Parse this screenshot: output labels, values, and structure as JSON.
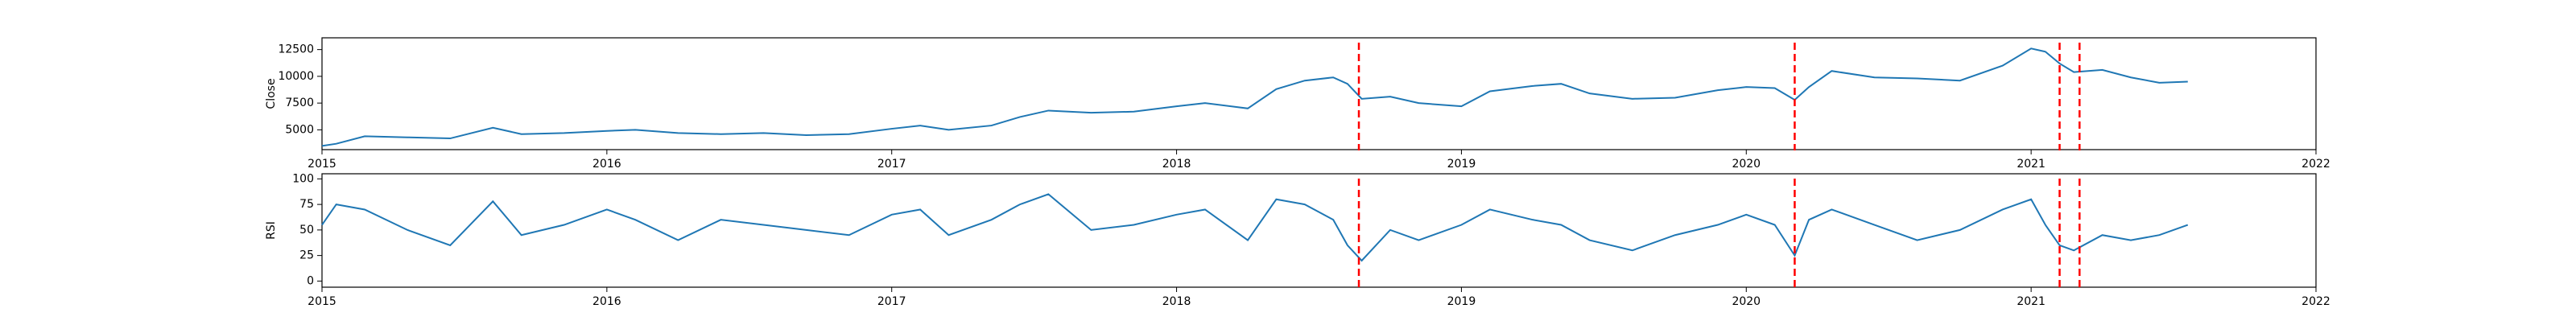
{
  "chart_data": [
    {
      "type": "line",
      "ylabel": "Close",
      "x": [
        2015.0,
        2015.05,
        2015.15,
        2015.3,
        2015.45,
        2015.6,
        2015.7,
        2015.85,
        2016.0,
        2016.1,
        2016.25,
        2016.4,
        2016.55,
        2016.7,
        2016.85,
        2017.0,
        2017.1,
        2017.2,
        2017.35,
        2017.45,
        2017.55,
        2017.7,
        2017.85,
        2018.0,
        2018.1,
        2018.25,
        2018.35,
        2018.45,
        2018.55,
        2018.6,
        2018.65,
        2018.75,
        2018.85,
        2019.0,
        2019.1,
        2019.25,
        2019.35,
        2019.45,
        2019.6,
        2019.75,
        2019.9,
        2020.0,
        2020.1,
        2020.17,
        2020.22,
        2020.3,
        2020.45,
        2020.6,
        2020.75,
        2020.9,
        2021.0,
        2021.05,
        2021.1,
        2021.15,
        2021.25,
        2021.35,
        2021.45,
        2021.55
      ],
      "series": [
        {
          "color": "#1f77b4",
          "values": [
            3500,
            3700,
            4400,
            4300,
            4200,
            5200,
            4600,
            4700,
            4900,
            5000,
            4700,
            4600,
            4700,
            4500,
            4600,
            5100,
            5400,
            5000,
            5400,
            6200,
            6800,
            6600,
            6700,
            7200,
            7500,
            7000,
            8800,
            9600,
            9900,
            9300,
            7900,
            8100,
            7500,
            7200,
            8600,
            9100,
            9300,
            8400,
            7900,
            8000,
            8700,
            9000,
            8900,
            7800,
            9000,
            10500,
            9900,
            9800,
            9600,
            11000,
            12600,
            12300,
            11200,
            10400,
            10600,
            9900,
            9400,
            9500
          ]
        }
      ],
      "event_lines": {
        "color": "red",
        "x": [
          2018.64,
          2020.17,
          2021.1,
          2021.17
        ]
      },
      "xlim": [
        2015,
        2022
      ],
      "xticks": [
        2015,
        2016,
        2017,
        2018,
        2019,
        2020,
        2021,
        2022
      ],
      "ylim": [
        3150,
        13600
      ],
      "yticks": [
        5000,
        7500,
        10000,
        12500
      ]
    },
    {
      "type": "line",
      "ylabel": "RSI",
      "x": [
        2015.0,
        2015.05,
        2015.15,
        2015.3,
        2015.45,
        2015.6,
        2015.7,
        2015.85,
        2016.0,
        2016.1,
        2016.25,
        2016.4,
        2016.55,
        2016.7,
        2016.85,
        2017.0,
        2017.1,
        2017.2,
        2017.35,
        2017.45,
        2017.55,
        2017.7,
        2017.85,
        2018.0,
        2018.1,
        2018.25,
        2018.35,
        2018.45,
        2018.55,
        2018.6,
        2018.65,
        2018.75,
        2018.85,
        2019.0,
        2019.1,
        2019.25,
        2019.35,
        2019.45,
        2019.6,
        2019.75,
        2019.9,
        2020.0,
        2020.1,
        2020.17,
        2020.22,
        2020.3,
        2020.45,
        2020.6,
        2020.75,
        2020.9,
        2021.0,
        2021.05,
        2021.1,
        2021.15,
        2021.25,
        2021.35,
        2021.45,
        2021.55
      ],
      "series": [
        {
          "color": "#1f77b4",
          "values": [
            55,
            75,
            70,
            50,
            35,
            78,
            45,
            55,
            70,
            60,
            40,
            60,
            55,
            50,
            45,
            65,
            70,
            45,
            60,
            75,
            85,
            50,
            55,
            65,
            70,
            40,
            80,
            75,
            60,
            35,
            20,
            50,
            40,
            55,
            70,
            60,
            55,
            40,
            30,
            45,
            55,
            65,
            55,
            25,
            60,
            70,
            55,
            40,
            50,
            70,
            80,
            55,
            35,
            30,
            45,
            40,
            45,
            55
          ]
        }
      ],
      "event_lines": {
        "color": "red",
        "x": [
          2018.64,
          2020.17,
          2021.1,
          2021.17
        ]
      },
      "xlim": [
        2015,
        2022
      ],
      "xticks": [
        2015,
        2016,
        2017,
        2018,
        2019,
        2020,
        2021,
        2022
      ],
      "ylim": [
        -6,
        105
      ],
      "yticks": [
        0,
        25,
        50,
        75,
        100
      ]
    }
  ]
}
